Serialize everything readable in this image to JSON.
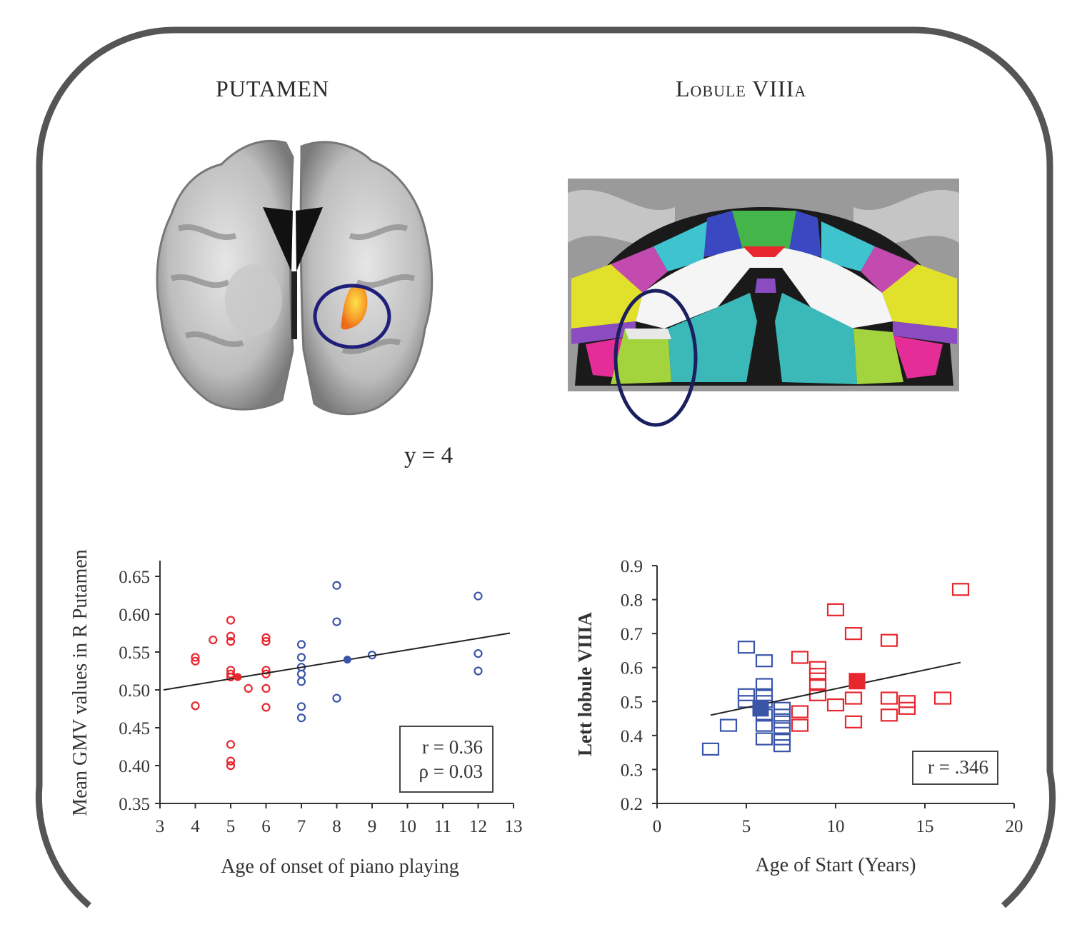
{
  "panels": {
    "left": {
      "title": "PUTAMEN",
      "coordinate": "y = 4"
    },
    "right": {
      "title": "Lobule VIIIa"
    }
  },
  "colors": {
    "frame": "#555555",
    "red": "#e8262e",
    "blue": "#3a55a8",
    "circle": "#1f1f7a",
    "activation": "#f58a1f"
  },
  "chart_data": [
    {
      "type": "scatter",
      "title": "",
      "xlabel": "Age of onset of piano playing",
      "ylabel": "Mean GMV values in R Putamen",
      "xlim": [
        3,
        13
      ],
      "ylim": [
        0.35,
        0.65
      ],
      "xticks": [
        "3",
        "4",
        "5",
        "6",
        "7",
        "8",
        "9",
        "10",
        "11",
        "12",
        "13"
      ],
      "yticks": [
        "0.35",
        "0.40",
        "0.45",
        "0.50",
        "0.55",
        "0.60",
        "0.65"
      ],
      "grid": false,
      "marker": "circle",
      "annotation": [
        "r = 0.36",
        "ρ = 0.03"
      ],
      "annotation_position": "bottom-right",
      "regression": {
        "x": [
          3.1,
          12.9
        ],
        "y": [
          0.5,
          0.575
        ]
      },
      "series": [
        {
          "name": "red",
          "color": "#e8262e",
          "x": [
            4,
            4,
            4,
            4.5,
            5,
            5,
            5,
            5,
            5,
            5,
            5,
            5,
            5,
            5.5,
            6,
            6,
            6,
            6,
            6,
            6
          ],
          "y": [
            0.543,
            0.538,
            0.479,
            0.566,
            0.592,
            0.571,
            0.564,
            0.526,
            0.521,
            0.517,
            0.428,
            0.406,
            0.4,
            0.502,
            0.569,
            0.564,
            0.526,
            0.521,
            0.502,
            0.477
          ],
          "mean": {
            "x": 5.2,
            "y": 0.517
          }
        },
        {
          "name": "blue",
          "color": "#3a55a8",
          "x": [
            7,
            7,
            7,
            7,
            7,
            7,
            7,
            8,
            8,
            8,
            9,
            12,
            12,
            12
          ],
          "y": [
            0.56,
            0.543,
            0.53,
            0.521,
            0.511,
            0.478,
            0.463,
            0.638,
            0.59,
            0.489,
            0.546,
            0.624,
            0.548,
            0.525
          ],
          "mean": {
            "x": 8.3,
            "y": 0.54
          }
        }
      ]
    },
    {
      "type": "scatter",
      "title": "",
      "xlabel": "Age of Start (Years)",
      "ylabel": "Lett lobule VIIIA",
      "xlim": [
        0,
        20
      ],
      "ylim": [
        0.2,
        0.9
      ],
      "xticks": [
        "0",
        "5",
        "10",
        "15",
        "20"
      ],
      "yticks": [
        "0.2",
        "0.3",
        "0.4",
        "0.5",
        "0.6",
        "0.7",
        "0.8",
        "0.9"
      ],
      "grid": false,
      "marker": "square",
      "annotation": [
        "r = .346"
      ],
      "annotation_position": "bottom-right",
      "regression": {
        "x": [
          3,
          17
        ],
        "y": [
          0.46,
          0.615
        ]
      },
      "series": [
        {
          "name": "blue",
          "color": "#3a55a8",
          "x": [
            3,
            4,
            5,
            5,
            5,
            6,
            6,
            6,
            6,
            6,
            6,
            6,
            7,
            7,
            7,
            7,
            7,
            7
          ],
          "y": [
            0.36,
            0.43,
            0.66,
            0.52,
            0.5,
            0.62,
            0.55,
            0.52,
            0.5,
            0.46,
            0.43,
            0.39,
            0.48,
            0.46,
            0.44,
            0.42,
            0.39,
            0.37
          ],
          "mean": {
            "x": 5.8,
            "y": 0.48
          }
        },
        {
          "name": "red",
          "color": "#e8262e",
          "x": [
            8,
            8,
            8,
            9,
            9,
            9,
            9,
            10,
            10,
            11,
            11,
            11,
            13,
            13,
            13,
            14,
            14,
            16,
            17
          ],
          "y": [
            0.63,
            0.47,
            0.43,
            0.6,
            0.58,
            0.55,
            0.52,
            0.77,
            0.49,
            0.7,
            0.51,
            0.44,
            0.68,
            0.51,
            0.46,
            0.5,
            0.48,
            0.51,
            0.83
          ],
          "mean": {
            "x": 11.2,
            "y": 0.56
          }
        }
      ]
    }
  ]
}
